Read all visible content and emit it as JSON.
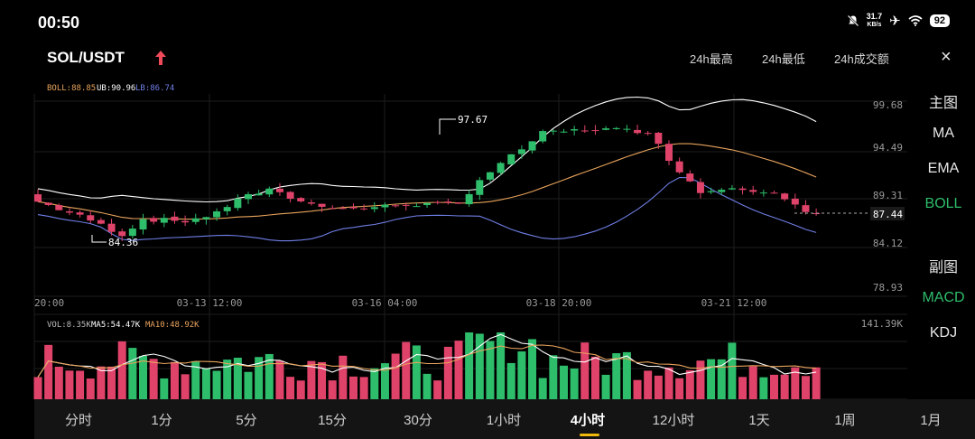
{
  "status": {
    "time": "00:50",
    "net_speed_value": "31.7",
    "net_speed_unit": "KB/s",
    "battery": "92"
  },
  "header": {
    "pair": "SOL/USDT",
    "stat_labels": [
      "24h最高",
      "24h最低",
      "24h成交额"
    ],
    "close": "×"
  },
  "side_menu": {
    "main_title": "主图",
    "main_items": [
      "MA",
      "EMA",
      "BOLL"
    ],
    "sub_title": "副图",
    "sub_items": [
      "MACD",
      "KDJ"
    ],
    "active_main": "BOLL",
    "active_sub": "MACD"
  },
  "tabs": {
    "items": [
      "分时",
      "1分",
      "5分",
      "15分",
      "30分",
      "1小时",
      "4小时",
      "12小时",
      "1天",
      "1周",
      "1月"
    ],
    "active": "4小时"
  },
  "chart_data": {
    "type": "candlestick",
    "legend": {
      "boll": "BOLL:88.85",
      "ub": "UB:90.96",
      "lb": "LB:86.74"
    },
    "colors": {
      "up": "#2ebd6b",
      "down": "#e0436a",
      "boll": "#e8a35c",
      "ub": "#ffffff",
      "lb": "#6f7fe6",
      "ma5": "#ffffff",
      "ma10": "#e8a35c"
    },
    "y_ticks": [
      "99.68",
      "94.49",
      "89.31",
      "84.12",
      "78.93"
    ],
    "ylim": [
      78.93,
      99.68
    ],
    "x_ticks": [
      "20:00",
      "03-13 12:00",
      "03-16 04:00",
      "03-18 20:00",
      "03-21 12:00"
    ],
    "last_price": "87.44",
    "max_label": "97.67",
    "min_label": "84.36",
    "volume_legend": {
      "vol": "VOL:8.35K",
      "ma5": "MA5:54.47K",
      "ma10": "MA10:48.92K"
    },
    "volume_max_label": "141.39K"
  }
}
